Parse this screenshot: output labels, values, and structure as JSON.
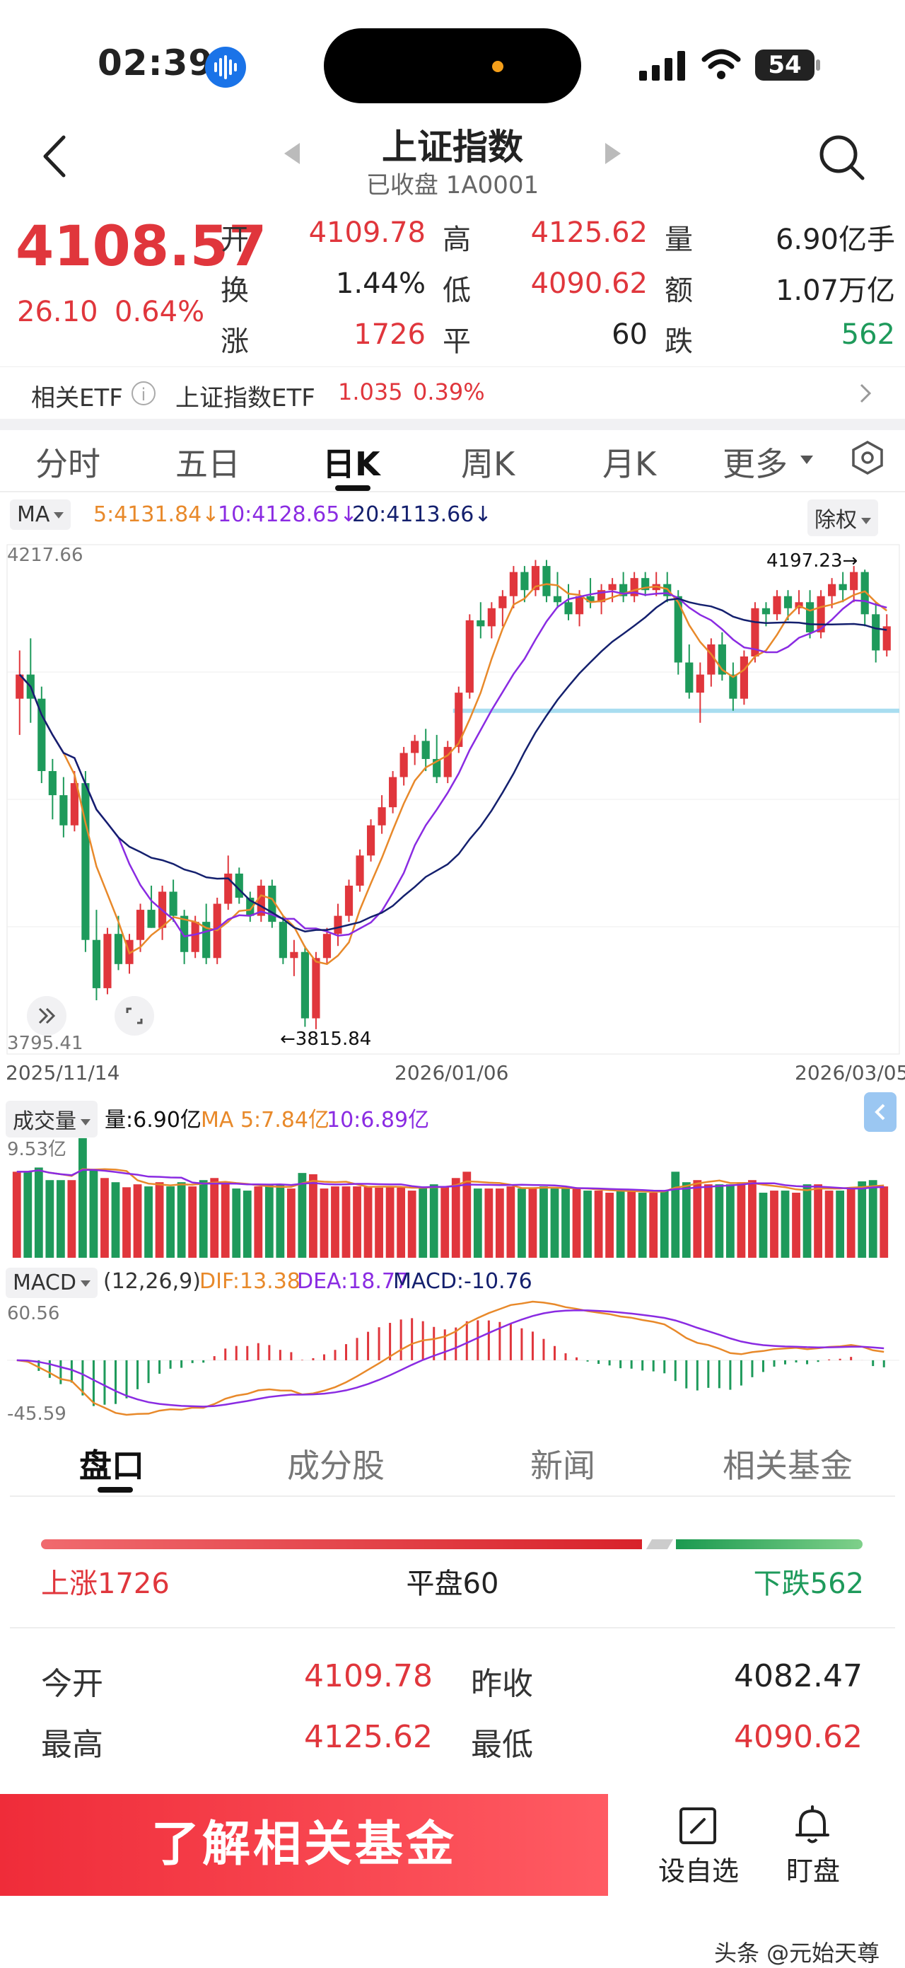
{
  "status_bar": {
    "time": "02:39",
    "battery": "54"
  },
  "header": {
    "title": "上证指数",
    "subtitle": "已收盘 1A0001"
  },
  "quote": {
    "price": "4108.57",
    "change": "26.10",
    "change_pct": "0.64%",
    "rows": [
      {
        "l1": "开",
        "v1": "4109.78",
        "l2": "高",
        "v2": "4125.62",
        "l3": "量",
        "v3": "6.90亿手"
      },
      {
        "l1": "换",
        "v1": "1.44%",
        "l2": "低",
        "v2": "4090.62",
        "l3": "额",
        "v3": "1.07万亿"
      },
      {
        "l1": "涨",
        "v1": "1726",
        "l2": "平",
        "v2": "60",
        "l3": "跌",
        "v3": "562"
      }
    ]
  },
  "etf": {
    "label": "相关ETF",
    "info": "i",
    "name": "上证指数ETF",
    "price": "1.035",
    "pct": "0.39%"
  },
  "period_tabs": [
    "分时",
    "五日",
    "日K",
    "周K",
    "月K",
    "更多"
  ],
  "ma_row": {
    "chip": "MA",
    "ma5": "5:4131.84",
    "ma10": "10:4128.65",
    "ma20": "20:4113.66",
    "arrow": "↓",
    "adjust": "除权"
  },
  "chart": {
    "y_high_label": "4217.66",
    "y_low_label": "3795.41",
    "max_annot": "4197.23→",
    "min_annot": "←3815.84",
    "dates": [
      "2025/11/14",
      "2026/01/06",
      "2026/03/05"
    ]
  },
  "volume_row": {
    "chip": "成交量",
    "vol": "量:6.90亿",
    "ma5": "MA 5:7.84亿",
    "ma10": "10:6.89亿",
    "y_label": "9.53亿"
  },
  "macd_row": {
    "chip": "MACD",
    "params": "(12,26,9)",
    "dif": "DIF:13.38",
    "dea": "DEA:18.77",
    "macd": "MACD:-10.76",
    "y_high": "60.56",
    "y_low": "-45.59"
  },
  "lower_tabs": [
    "盘口",
    "成分股",
    "新闻",
    "相关基金"
  ],
  "breadth": {
    "rise": "上涨1726",
    "flat": "平盘60",
    "fall": "下跌562"
  },
  "panel": [
    {
      "l1": "今开",
      "v1": "4109.78",
      "l2": "昨收",
      "v2": "4082.47"
    },
    {
      "l1": "最高",
      "v1": "4125.62",
      "l2": "最低",
      "v2": "4090.62"
    }
  ],
  "bottom": {
    "fund_button": "了解相关基金",
    "watch": "设自选",
    "alert": "盯盘"
  },
  "watermark": "头条 @元始天尊",
  "colors": {
    "up": "#e0363c",
    "down": "#1e9a5b",
    "ma5": "#e8892a",
    "ma10": "#8a2be2",
    "ma20": "#14206e",
    "support": "#a8ddf0"
  },
  "chart_data": {
    "type": "candlestick",
    "ohlc": [
      [
        4090,
        4130,
        4060,
        4110
      ],
      [
        4110,
        4140,
        4070,
        4090
      ],
      [
        4090,
        4100,
        4020,
        4030
      ],
      [
        4030,
        4040,
        3990,
        4010
      ],
      [
        4010,
        4025,
        3975,
        3985
      ],
      [
        3985,
        4030,
        3980,
        4020
      ],
      [
        4020,
        4030,
        3880,
        3890
      ],
      [
        3890,
        3915,
        3840,
        3850
      ],
      [
        3850,
        3900,
        3845,
        3895
      ],
      [
        3895,
        3910,
        3865,
        3870
      ],
      [
        3870,
        3895,
        3862,
        3890
      ],
      [
        3890,
        3920,
        3880,
        3915
      ],
      [
        3915,
        3935,
        3900,
        3900
      ],
      [
        3900,
        3935,
        3890,
        3930
      ],
      [
        3930,
        3940,
        3905,
        3910
      ],
      [
        3910,
        3915,
        3870,
        3880
      ],
      [
        3880,
        3910,
        3875,
        3905
      ],
      [
        3905,
        3920,
        3870,
        3875
      ],
      [
        3875,
        3925,
        3870,
        3920
      ],
      [
        3920,
        3960,
        3915,
        3945
      ],
      [
        3945,
        3950,
        3920,
        3925
      ],
      [
        3925,
        3930,
        3905,
        3910
      ],
      [
        3910,
        3940,
        3905,
        3935
      ],
      [
        3935,
        3940,
        3900,
        3905
      ],
      [
        3905,
        3910,
        3870,
        3875
      ],
      [
        3875,
        3890,
        3860,
        3880
      ],
      [
        3880,
        3885,
        3818,
        3825
      ],
      [
        3825,
        3880,
        3816,
        3875
      ],
      [
        3875,
        3900,
        3870,
        3895
      ],
      [
        3895,
        3920,
        3885,
        3910
      ],
      [
        3910,
        3940,
        3905,
        3935
      ],
      [
        3935,
        3965,
        3930,
        3960
      ],
      [
        3960,
        3990,
        3955,
        3985
      ],
      [
        3985,
        4010,
        3978,
        4000
      ],
      [
        4000,
        4030,
        3995,
        4025
      ],
      [
        4025,
        4050,
        4018,
        4045
      ],
      [
        4045,
        4060,
        4035,
        4055
      ],
      [
        4055,
        4065,
        4030,
        4040
      ],
      [
        4040,
        4060,
        4020,
        4025
      ],
      [
        4025,
        4055,
        4020,
        4050
      ],
      [
        4050,
        4100,
        4045,
        4095
      ],
      [
        4095,
        4160,
        4090,
        4155
      ],
      [
        4155,
        4170,
        4140,
        4150
      ],
      [
        4150,
        4170,
        4140,
        4165
      ],
      [
        4165,
        4180,
        4150,
        4175
      ],
      [
        4175,
        4200,
        4165,
        4195
      ],
      [
        4195,
        4200,
        4170,
        4180
      ],
      [
        4180,
        4205,
        4175,
        4200
      ],
      [
        4200,
        4205,
        4170,
        4175
      ],
      [
        4175,
        4195,
        4165,
        4170
      ],
      [
        4170,
        4185,
        4155,
        4160
      ],
      [
        4160,
        4180,
        4150,
        4175
      ],
      [
        4175,
        4190,
        4165,
        4170
      ],
      [
        4170,
        4185,
        4160,
        4180
      ],
      [
        4180,
        4190,
        4170,
        4185
      ],
      [
        4185,
        4195,
        4170,
        4175
      ],
      [
        4175,
        4195,
        4170,
        4190
      ],
      [
        4190,
        4195,
        4175,
        4180
      ],
      [
        4180,
        4195,
        4175,
        4185
      ],
      [
        4185,
        4195,
        4170,
        4175
      ],
      [
        4175,
        4180,
        4110,
        4120
      ],
      [
        4120,
        4135,
        4090,
        4095
      ],
      [
        4095,
        4120,
        4070,
        4110
      ],
      [
        4110,
        4140,
        4100,
        4135
      ],
      [
        4135,
        4145,
        4105,
        4110
      ],
      [
        4110,
        4120,
        4080,
        4090
      ],
      [
        4090,
        4130,
        4085,
        4125
      ],
      [
        4125,
        4170,
        4120,
        4165
      ],
      [
        4165,
        4170,
        4150,
        4160
      ],
      [
        4160,
        4180,
        4155,
        4175
      ],
      [
        4175,
        4180,
        4155,
        4165
      ],
      [
        4165,
        4180,
        4160,
        4170
      ],
      [
        4170,
        4180,
        4140,
        4145
      ],
      [
        4145,
        4180,
        4140,
        4175
      ],
      [
        4175,
        4190,
        4165,
        4185
      ],
      [
        4185,
        4195,
        4170,
        4180
      ],
      [
        4180,
        4200,
        4170,
        4195
      ],
      [
        4195,
        4197,
        4150,
        4160
      ],
      [
        4160,
        4170,
        4120,
        4130
      ],
      [
        4130,
        4160,
        4125,
        4150
      ]
    ],
    "y_range": [
      3795.41,
      4217.66
    ],
    "x_dates": [
      "2025/11/14",
      "2026/01/06",
      "2026/03/05"
    ]
  }
}
